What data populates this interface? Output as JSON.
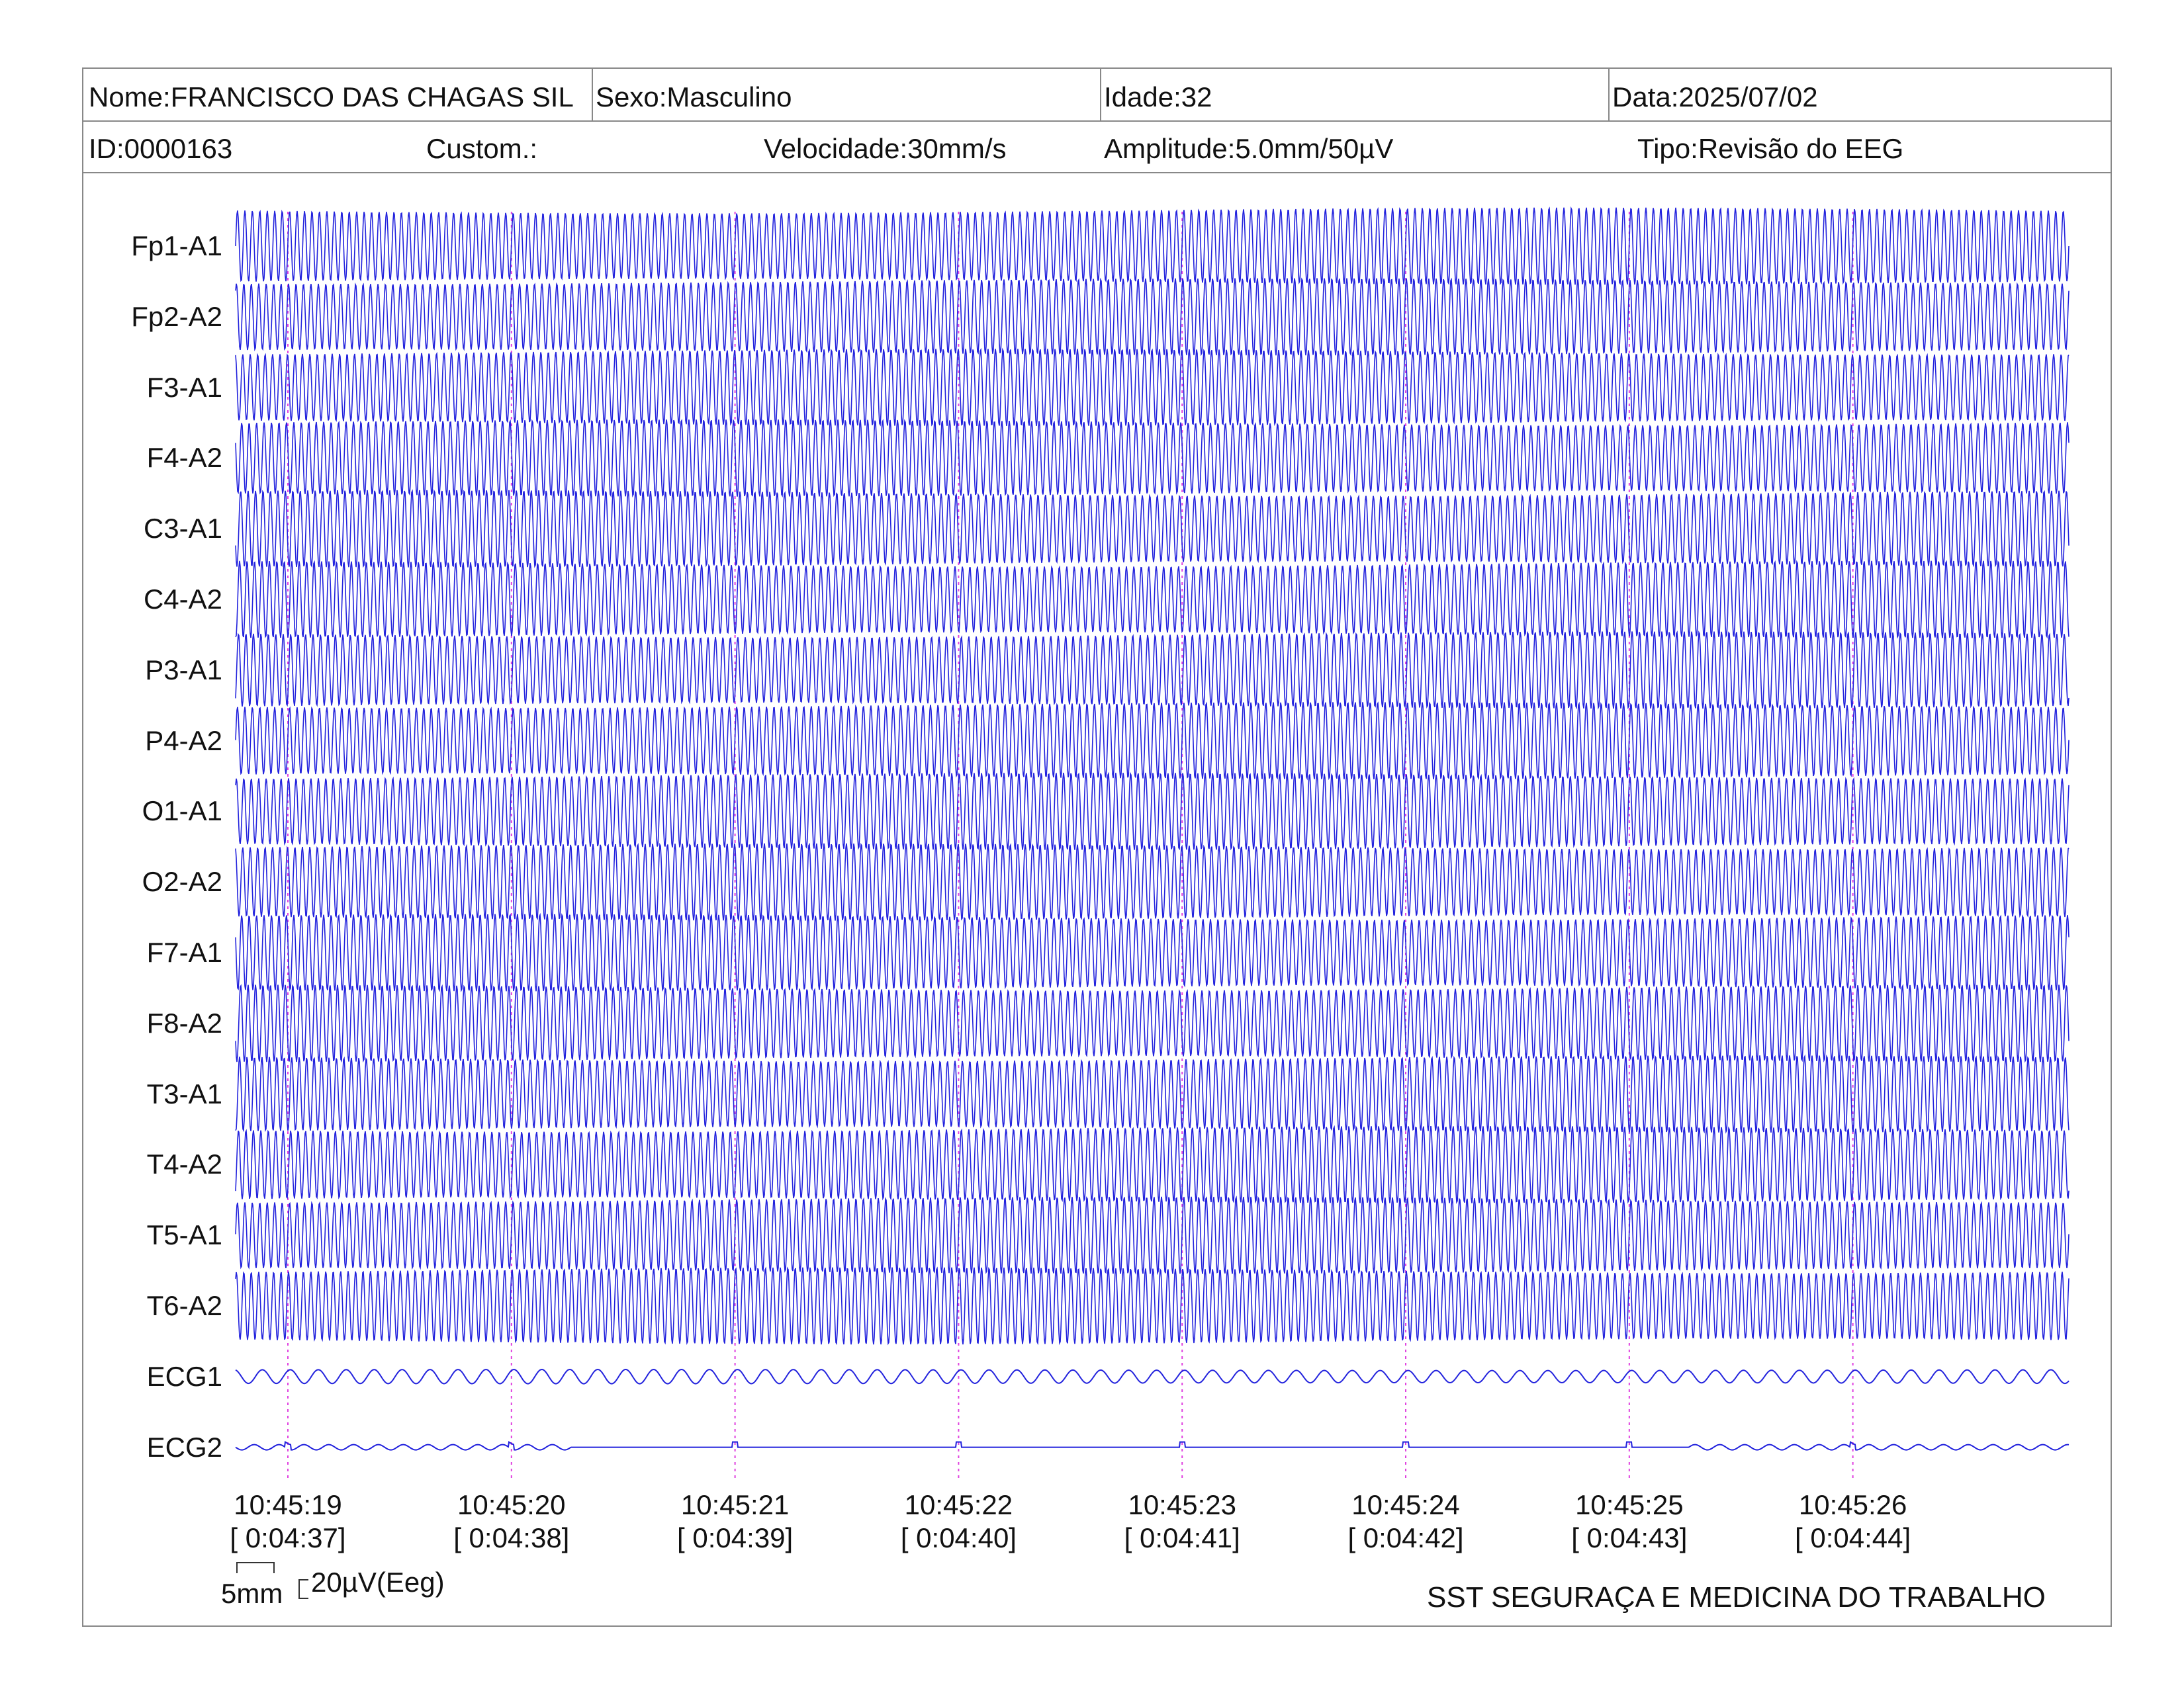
{
  "header": {
    "nome": "Nome:FRANCISCO DAS CHAGAS SIL",
    "sexo": "Sexo:Masculino",
    "idade": "Idade:32",
    "data": "Data:2025/07/02",
    "id": "ID:0000163",
    "custom": "Custom.:",
    "velocidade": "Velocidade:30mm/s",
    "amplitude": "Amplitude:5.0mm/50µV",
    "tipo": "Tipo:Revisão do EEG"
  },
  "chart_data": {
    "type": "line",
    "channels": [
      "Fp1-A1",
      "Fp2-A2",
      "F3-A1",
      "F4-A2",
      "C3-A1",
      "C4-A2",
      "P3-A1",
      "P4-A2",
      "O1-A1",
      "O2-A2",
      "F7-A1",
      "F8-A2",
      "T3-A1",
      "T4-A2",
      "T5-A1",
      "T6-A2",
      "ECG1",
      "ECG2"
    ],
    "time_marks": [
      {
        "clock": "10:45:19",
        "elapsed": "[ 0:04:37]"
      },
      {
        "clock": "10:45:20",
        "elapsed": "[ 0:04:38]"
      },
      {
        "clock": "10:45:21",
        "elapsed": "[ 0:04:39]"
      },
      {
        "clock": "10:45:22",
        "elapsed": "[ 0:04:40]"
      },
      {
        "clock": "10:45:23",
        "elapsed": "[ 0:04:41]"
      },
      {
        "clock": "10:45:24",
        "elapsed": "[ 0:04:42]"
      },
      {
        "clock": "10:45:25",
        "elapsed": "[ 0:04:43]"
      },
      {
        "clock": "10:45:26",
        "elapsed": "[ 0:04:44]"
      }
    ],
    "x_range_seconds": [
      0,
      8.2
    ],
    "speed": "30mm/s",
    "amplitude_scale": "5.0mm/50µV",
    "calibration": {
      "time": "5mm",
      "amplitude": "20µV(Eeg)"
    },
    "eeg_frequency_hz": 30,
    "ecg1_frequency_hz": 8
  },
  "footer": "SST SEGURAÇA E MEDICINA DO TRABALHO",
  "colors": {
    "trace": "#2222dd",
    "marker": "#e040e0",
    "frame": "#888888"
  }
}
